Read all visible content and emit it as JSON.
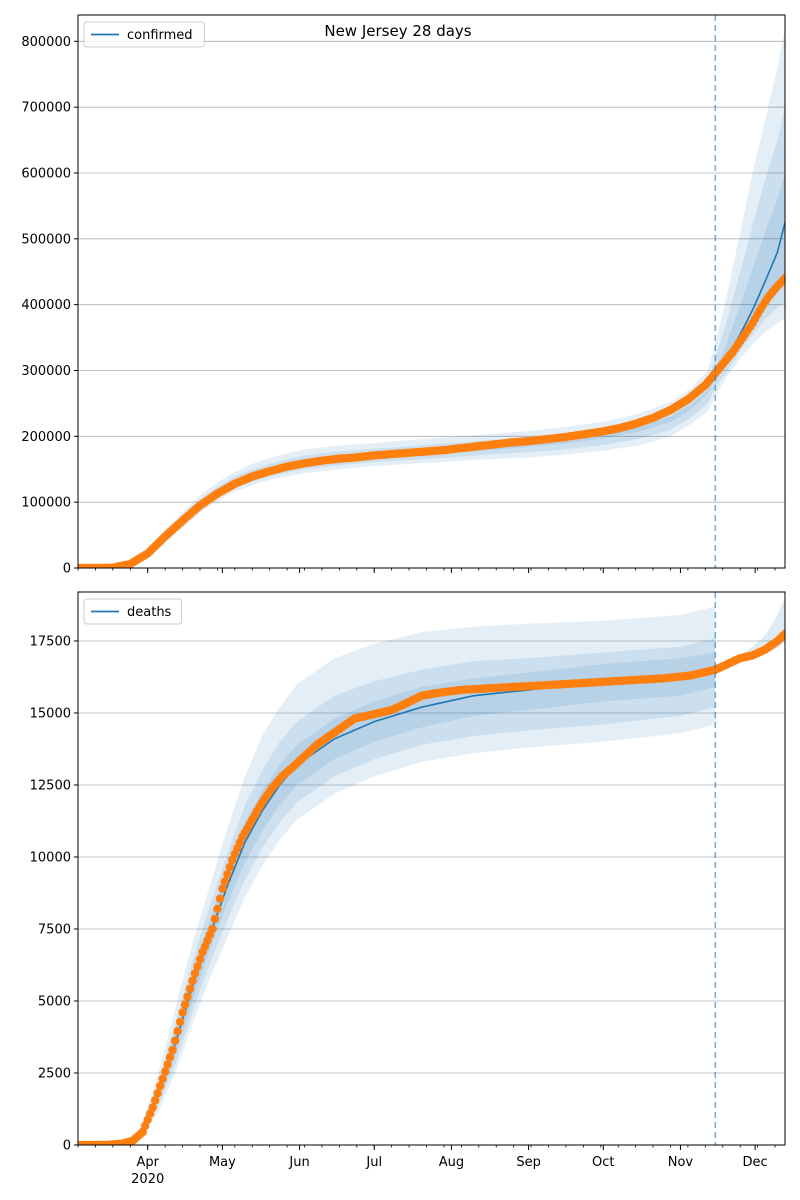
{
  "figure": {
    "title": "New Jersey 28 days"
  },
  "chart_data": [
    {
      "type": "line",
      "title": "New Jersey 28 days",
      "legend": {
        "label": "confirmed",
        "placement": "top-left"
      },
      "ylim": [
        0,
        840000
      ],
      "yticks": [
        0,
        100000,
        200000,
        300000,
        400000,
        500000,
        600000,
        700000,
        800000
      ],
      "xlim": [
        "2020-03-04",
        "2020-12-13"
      ],
      "xticks": [
        {
          "date": "2020-04-01",
          "label": "Apr",
          "sublabel": "2020"
        },
        {
          "date": "2020-05-01",
          "label": "May"
        },
        {
          "date": "2020-06-01",
          "label": "Jun"
        },
        {
          "date": "2020-07-01",
          "label": "Jul"
        },
        {
          "date": "2020-08-01",
          "label": "Aug"
        },
        {
          "date": "2020-09-01",
          "label": "Sep"
        },
        {
          "date": "2020-10-01",
          "label": "Oct"
        },
        {
          "date": "2020-11-01",
          "label": "Nov"
        },
        {
          "date": "2020-12-01",
          "label": "Dec"
        }
      ],
      "forecast_start": "2020-11-15",
      "grid": "horizontal",
      "observed": {
        "dates": [
          "2020-03-04",
          "2020-03-10",
          "2020-03-18",
          "2020-03-25",
          "2020-04-01",
          "2020-04-08",
          "2020-04-15",
          "2020-04-22",
          "2020-04-29",
          "2020-05-06",
          "2020-05-13",
          "2020-05-20",
          "2020-05-27",
          "2020-06-03",
          "2020-06-10",
          "2020-06-17",
          "2020-06-24",
          "2020-07-01",
          "2020-07-08",
          "2020-07-15",
          "2020-07-22",
          "2020-07-29",
          "2020-08-05",
          "2020-08-12",
          "2020-08-19",
          "2020-08-26",
          "2020-09-02",
          "2020-09-09",
          "2020-09-16",
          "2020-09-23",
          "2020-09-30",
          "2020-10-07",
          "2020-10-14",
          "2020-10-21",
          "2020-10-28",
          "2020-11-04",
          "2020-11-11",
          "2020-11-15",
          "2020-11-18",
          "2020-11-22",
          "2020-11-26",
          "2020-11-30",
          "2020-12-03",
          "2020-12-06",
          "2020-12-09",
          "2020-12-13"
        ],
        "values": [
          0,
          0,
          500,
          6000,
          22000,
          48000,
          72000,
          95000,
          113000,
          128000,
          139000,
          147000,
          154000,
          159000,
          163000,
          166000,
          168000,
          171000,
          173000,
          175000,
          177000,
          179000,
          182000,
          185000,
          188000,
          191000,
          193000,
          196000,
          199000,
          203000,
          207000,
          212000,
          219000,
          228000,
          240000,
          256000,
          278000,
          296000,
          310000,
          328000,
          350000,
          372000,
          392000,
          410000,
          424000,
          440000
        ]
      },
      "forecast": {
        "dates": [
          "2020-11-15",
          "2020-11-20",
          "2020-11-25",
          "2020-11-30",
          "2020-12-05",
          "2020-12-10",
          "2020-12-13"
        ],
        "values": [
          296000,
          322000,
          355000,
          392000,
          435000,
          480000,
          525000
        ]
      },
      "bands": [
        {
          "dates": [
            "2020-03-04",
            "2020-03-10",
            "2020-03-18",
            "2020-03-25",
            "2020-04-01",
            "2020-04-08",
            "2020-04-15",
            "2020-04-22",
            "2020-04-29",
            "2020-05-06",
            "2020-05-13",
            "2020-05-20",
            "2020-05-27",
            "2020-06-03",
            "2020-06-17",
            "2020-07-01",
            "2020-07-15",
            "2020-08-01",
            "2020-08-15",
            "2020-09-01",
            "2020-09-15",
            "2020-10-01",
            "2020-10-15",
            "2020-10-28",
            "2020-11-05",
            "2020-11-12",
            "2020-11-15",
            "2020-11-20",
            "2020-11-25",
            "2020-11-30",
            "2020-12-05",
            "2020-12-10",
            "2020-12-13"
          ],
          "lower": [
            0,
            0,
            300,
            4500,
            16000,
            38000,
            60000,
            84000,
            102000,
            116000,
            126000,
            134000,
            139000,
            144000,
            150000,
            155000,
            158000,
            162000,
            165000,
            168000,
            172000,
            178000,
            186000,
            200000,
            218000,
            238000,
            262000,
            292000,
            318000,
            340000,
            358000,
            372000,
            380000
          ],
          "upper": [
            0,
            0,
            900,
            9000,
            30000,
            58000,
            85000,
            110000,
            130000,
            146000,
            158000,
            167000,
            174000,
            180000,
            186000,
            190000,
            194000,
            199000,
            203000,
            208000,
            214000,
            222000,
            234000,
            252000,
            272000,
            300000,
            340000,
            420000,
            510000,
            600000,
            680000,
            760000,
            820000
          ]
        },
        {
          "dates": [
            "2020-03-04",
            "2020-03-10",
            "2020-03-18",
            "2020-03-25",
            "2020-04-01",
            "2020-04-08",
            "2020-04-15",
            "2020-04-22",
            "2020-04-29",
            "2020-05-06",
            "2020-05-13",
            "2020-05-20",
            "2020-05-27",
            "2020-06-03",
            "2020-06-17",
            "2020-07-01",
            "2020-07-15",
            "2020-08-01",
            "2020-08-15",
            "2020-09-01",
            "2020-09-15",
            "2020-10-01",
            "2020-10-15",
            "2020-10-28",
            "2020-11-05",
            "2020-11-12",
            "2020-11-15",
            "2020-11-20",
            "2020-11-25",
            "2020-11-30",
            "2020-12-05",
            "2020-12-10",
            "2020-12-13"
          ],
          "lower": [
            0,
            0,
            350,
            5000,
            18000,
            42000,
            65000,
            88000,
            106000,
            120000,
            131000,
            139000,
            145000,
            150000,
            156000,
            161000,
            164000,
            168000,
            172000,
            176000,
            180000,
            187000,
            196000,
            210000,
            228000,
            250000,
            275000,
            300000,
            330000,
            355000,
            378000,
            395000,
            405000
          ],
          "upper": [
            0,
            0,
            700,
            8000,
            27000,
            54000,
            80000,
            104000,
            123000,
            139000,
            150000,
            158000,
            165000,
            171000,
            177000,
            181000,
            185000,
            190000,
            194000,
            199000,
            204000,
            211000,
            222000,
            238000,
            256000,
            282000,
            318000,
            380000,
            450000,
            520000,
            590000,
            650000,
            700000
          ]
        },
        {
          "dates": [
            "2020-03-04",
            "2020-03-10",
            "2020-03-18",
            "2020-03-25",
            "2020-04-01",
            "2020-04-08",
            "2020-04-15",
            "2020-04-22",
            "2020-04-29",
            "2020-05-06",
            "2020-05-13",
            "2020-05-20",
            "2020-05-27",
            "2020-06-03",
            "2020-06-17",
            "2020-07-01",
            "2020-07-15",
            "2020-08-01",
            "2020-08-15",
            "2020-09-01",
            "2020-09-15",
            "2020-10-01",
            "2020-10-15",
            "2020-10-28",
            "2020-11-05",
            "2020-11-12",
            "2020-11-15",
            "2020-11-20",
            "2020-11-25",
            "2020-11-30",
            "2020-12-05",
            "2020-12-10",
            "2020-12-13"
          ],
          "lower": [
            0,
            0,
            400,
            5500,
            20000,
            45000,
            68000,
            91000,
            109000,
            124000,
            135000,
            143000,
            150000,
            155000,
            161000,
            166000,
            170000,
            175000,
            179000,
            184000,
            189000,
            197000,
            207000,
            222000,
            240000,
            265000,
            288000,
            312000,
            342000,
            375000,
            405000,
            430000,
            445000
          ],
          "upper": [
            0,
            0,
            600,
            7000,
            25000,
            51000,
            76000,
            99000,
            117000,
            132000,
            143000,
            151000,
            158000,
            164000,
            170000,
            175000,
            179000,
            184000,
            188000,
            192000,
            197000,
            204000,
            214000,
            230000,
            248000,
            270000,
            300000,
            345000,
            400000,
            455000,
            510000,
            560000,
            600000
          ]
        }
      ]
    },
    {
      "type": "line",
      "legend": {
        "label": "deaths",
        "placement": "top-left"
      },
      "ylim": [
        0,
        19200
      ],
      "yticks": [
        0,
        2500,
        5000,
        7500,
        10000,
        12500,
        15000,
        17500
      ],
      "xlim": [
        "2020-03-04",
        "2020-12-13"
      ],
      "xticks": [
        {
          "date": "2020-04-01",
          "label": "Apr",
          "sublabel": "2020"
        },
        {
          "date": "2020-05-01",
          "label": "May"
        },
        {
          "date": "2020-06-01",
          "label": "Jun"
        },
        {
          "date": "2020-07-01",
          "label": "Jul"
        },
        {
          "date": "2020-08-01",
          "label": "Aug"
        },
        {
          "date": "2020-09-01",
          "label": "Sep"
        },
        {
          "date": "2020-10-01",
          "label": "Oct"
        },
        {
          "date": "2020-11-01",
          "label": "Nov"
        },
        {
          "date": "2020-12-01",
          "label": "Dec"
        }
      ],
      "forecast_start": "2020-11-15",
      "grid": "horizontal",
      "observed": {
        "dates": [
          "2020-03-04",
          "2020-03-15",
          "2020-03-22",
          "2020-03-26",
          "2020-03-30",
          "2020-04-03",
          "2020-04-07",
          "2020-04-11",
          "2020-04-15",
          "2020-04-19",
          "2020-04-23",
          "2020-04-27",
          "2020-05-01",
          "2020-05-05",
          "2020-05-09",
          "2020-05-13",
          "2020-05-17",
          "2020-05-21",
          "2020-05-25",
          "2020-05-29",
          "2020-06-03",
          "2020-06-08",
          "2020-06-13",
          "2020-06-18",
          "2020-06-23",
          "2020-06-28",
          "2020-07-03",
          "2020-07-08",
          "2020-07-13",
          "2020-07-20",
          "2020-07-27",
          "2020-08-05",
          "2020-08-15",
          "2020-08-25",
          "2020-09-05",
          "2020-09-15",
          "2020-09-25",
          "2020-10-05",
          "2020-10-15",
          "2020-10-25",
          "2020-11-05",
          "2020-11-15",
          "2020-11-20",
          "2020-11-25",
          "2020-11-30",
          "2020-12-05",
          "2020-12-10",
          "2020-12-13"
        ],
        "values": [
          0,
          0,
          50,
          150,
          450,
          1300,
          2300,
          3300,
          4600,
          5700,
          6700,
          7500,
          8900,
          9900,
          10700,
          11300,
          11900,
          12400,
          12800,
          13100,
          13500,
          13900,
          14200,
          14500,
          14800,
          14900,
          15000,
          15100,
          15300,
          15600,
          15700,
          15800,
          15850,
          15900,
          15950,
          16000,
          16050,
          16100,
          16150,
          16200,
          16300,
          16500,
          16700,
          16900,
          17000,
          17200,
          17500,
          17750
        ]
      },
      "forecast": {
        "dates": [
          "2020-03-04",
          "2020-03-20",
          "2020-03-28",
          "2020-04-05",
          "2020-04-12",
          "2020-04-19",
          "2020-04-26",
          "2020-05-03",
          "2020-05-10",
          "2020-05-17",
          "2020-05-24",
          "2020-05-31",
          "2020-06-15",
          "2020-07-01",
          "2020-07-20",
          "2020-08-10",
          "2020-09-01",
          "2020-10-01",
          "2020-11-01",
          "2020-11-15"
        ],
        "values": [
          0,
          40,
          250,
          1700,
          3500,
          5500,
          7300,
          9000,
          10500,
          11600,
          12500,
          13200,
          14100,
          14700,
          15200,
          15600,
          15800,
          16100,
          16300,
          16500
        ]
      },
      "bands": [
        {
          "dates": [
            "2020-03-04",
            "2020-03-20",
            "2020-03-28",
            "2020-04-05",
            "2020-04-12",
            "2020-04-19",
            "2020-04-26",
            "2020-05-03",
            "2020-05-10",
            "2020-05-17",
            "2020-05-24",
            "2020-05-31",
            "2020-06-15",
            "2020-07-01",
            "2020-07-20",
            "2020-08-10",
            "2020-09-01",
            "2020-10-01",
            "2020-11-01",
            "2020-11-15"
          ],
          "lower": [
            0,
            20,
            150,
            1100,
            2500,
            4200,
            5800,
            7200,
            8600,
            9700,
            10600,
            11300,
            12200,
            12800,
            13300,
            13600,
            13800,
            14000,
            14300,
            14600
          ],
          "upper": [
            0,
            70,
            380,
            2400,
            4700,
            7000,
            9000,
            11000,
            12800,
            14200,
            15200,
            16000,
            16900,
            17400,
            17800,
            18000,
            18100,
            18200,
            18400,
            18700
          ]
        },
        {
          "dates": [
            "2020-03-04",
            "2020-03-20",
            "2020-03-28",
            "2020-04-05",
            "2020-04-12",
            "2020-04-19",
            "2020-04-26",
            "2020-05-03",
            "2020-05-10",
            "2020-05-17",
            "2020-05-24",
            "2020-05-31",
            "2020-06-15",
            "2020-07-01",
            "2020-07-20",
            "2020-08-10",
            "2020-09-01",
            "2020-10-01",
            "2020-11-01",
            "2020-11-15"
          ],
          "lower": [
            0,
            25,
            180,
            1300,
            2800,
            4600,
            6300,
            7800,
            9200,
            10300,
            11200,
            11900,
            12800,
            13400,
            13900,
            14200,
            14400,
            14600,
            14900,
            15200
          ],
          "upper": [
            0,
            60,
            340,
            2100,
            4200,
            6400,
            8300,
            10100,
            11800,
            13000,
            14000,
            14700,
            15600,
            16100,
            16500,
            16800,
            16900,
            17100,
            17300,
            17600
          ]
        },
        {
          "dates": [
            "2020-03-04",
            "2020-03-20",
            "2020-03-28",
            "2020-04-05",
            "2020-04-12",
            "2020-04-19",
            "2020-04-26",
            "2020-05-03",
            "2020-05-10",
            "2020-05-17",
            "2020-05-24",
            "2020-05-31",
            "2020-06-15",
            "2020-07-01",
            "2020-07-20",
            "2020-08-10",
            "2020-09-01",
            "2020-10-01",
            "2020-11-01",
            "2020-11-15"
          ],
          "lower": [
            0,
            30,
            210,
            1500,
            3100,
            5000,
            6800,
            8400,
            9800,
            10900,
            11800,
            12500,
            13400,
            14000,
            14500,
            14900,
            15100,
            15400,
            15600,
            15900
          ],
          "upper": [
            0,
            50,
            300,
            1900,
            3900,
            6000,
            7800,
            9600,
            11200,
            12300,
            13200,
            13900,
            14800,
            15400,
            15900,
            16200,
            16400,
            16700,
            16900,
            17100
          ]
        }
      ],
      "post_forecast_bands": {
        "dates": [
          "2020-11-15",
          "2020-11-20",
          "2020-11-25",
          "2020-11-30",
          "2020-12-05",
          "2020-12-10",
          "2020-12-13"
        ],
        "lower": [
          16500,
          16650,
          16800,
          16900,
          17050,
          17250,
          17450
        ],
        "upper": [
          16500,
          16750,
          17000,
          17300,
          17700,
          18400,
          19000
        ]
      }
    }
  ],
  "colors": {
    "observed": "#ff7f0e",
    "line": "#1f77b4",
    "band": "#1f77b4",
    "grid": "#b0b0b0",
    "axis": "#000000"
  }
}
